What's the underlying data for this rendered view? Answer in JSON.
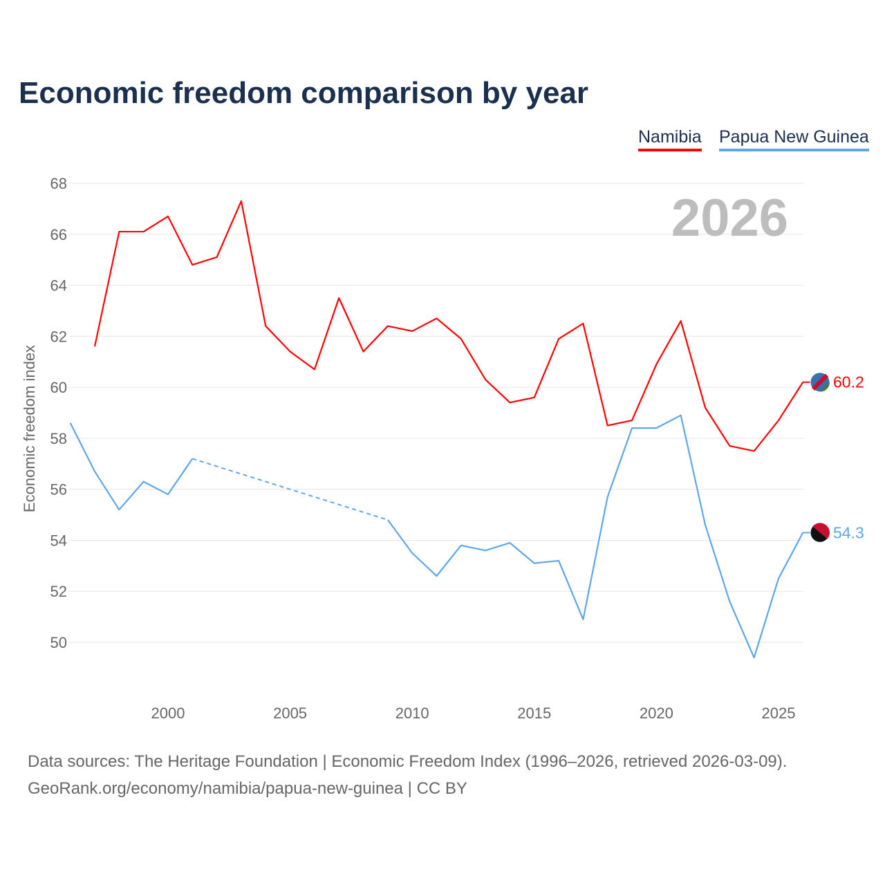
{
  "title": "Economic freedom comparison by year",
  "year_label": "2026",
  "footer": {
    "line1": "Data sources: The Heritage Foundation | Economic Freedom Index (1996–2026, retrieved 2026-03-09).",
    "line2": "GeoRank.org/economy/namibia/papua-new-guinea | CC BY"
  },
  "chart_data": {
    "type": "line",
    "title": "Economic freedom comparison by year",
    "xlabel": "",
    "ylabel": "Economic freedom index",
    "xlim": [
      1996,
      2026
    ],
    "ylim": [
      48,
      68.5
    ],
    "xticks": [
      2000,
      2005,
      2010,
      2015,
      2020,
      2025
    ],
    "yticks": [
      50,
      52,
      54,
      56,
      58,
      60,
      62,
      64,
      66,
      68
    ],
    "grid": true,
    "legend_position": "top-right",
    "x": [
      1996,
      1997,
      1998,
      1999,
      2000,
      2001,
      2002,
      2003,
      2004,
      2005,
      2006,
      2007,
      2008,
      2009,
      2010,
      2011,
      2012,
      2013,
      2014,
      2015,
      2016,
      2017,
      2018,
      2019,
      2020,
      2021,
      2022,
      2023,
      2024,
      2025,
      2026
    ],
    "series": [
      {
        "name": "Namibia",
        "color": "#ff0000",
        "end_label": "60.2",
        "values": [
          null,
          61.6,
          66.1,
          66.1,
          66.7,
          64.8,
          65.1,
          67.3,
          62.4,
          61.4,
          60.7,
          63.5,
          61.4,
          62.4,
          62.2,
          62.7,
          61.9,
          60.3,
          59.4,
          59.6,
          61.9,
          62.5,
          58.5,
          58.7,
          60.9,
          62.6,
          59.2,
          57.7,
          57.5,
          58.7,
          60.2
        ]
      },
      {
        "name": "Papua New Guinea",
        "color": "#5ea6ea",
        "end_label": "54.3",
        "values": [
          58.6,
          56.7,
          55.2,
          56.3,
          55.8,
          57.2,
          null,
          null,
          null,
          null,
          null,
          null,
          null,
          54.8,
          53.5,
          52.6,
          53.8,
          53.6,
          53.9,
          53.1,
          53.2,
          50.9,
          55.7,
          58.4,
          58.4,
          58.9,
          54.6,
          51.6,
          49.4,
          52.5,
          54.3
        ]
      }
    ]
  }
}
